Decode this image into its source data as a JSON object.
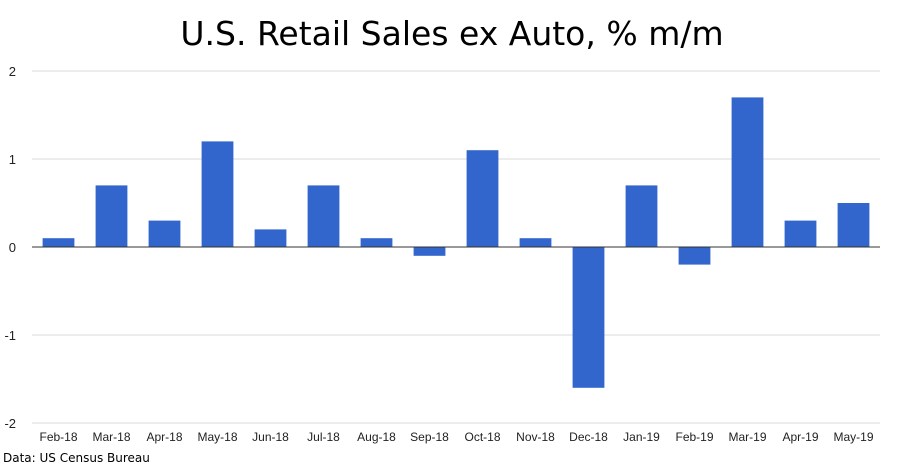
{
  "chart_data": {
    "type": "bar",
    "title": "U.S. Retail Sales ex Auto, % m/m",
    "xlabel": "",
    "ylabel": "",
    "categories": [
      "Feb-18",
      "Mar-18",
      "Apr-18",
      "May-18",
      "Jun-18",
      "Jul-18",
      "Aug-18",
      "Sep-18",
      "Oct-18",
      "Nov-18",
      "Dec-18",
      "Jan-19",
      "Feb-19",
      "Mar-19",
      "Apr-19",
      "May-19"
    ],
    "values": [
      0.1,
      0.7,
      0.3,
      1.2,
      0.2,
      0.7,
      0.1,
      -0.1,
      1.1,
      0.1,
      -1.6,
      0.7,
      -0.2,
      1.7,
      0.3,
      0.5
    ],
    "ylim": [
      -2,
      2
    ],
    "yticks": [
      2,
      1,
      0,
      -1,
      -2
    ],
    "grid": true,
    "bar_color": "#3366cc"
  },
  "source": "Data: US Census Bureau"
}
